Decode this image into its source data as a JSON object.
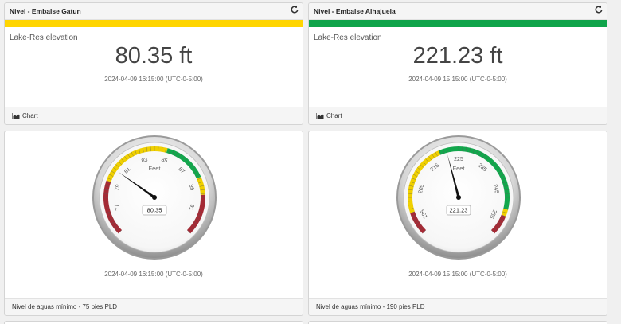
{
  "panels": [
    {
      "title": "Nivel - Embalse Gatun",
      "bar_color": "#ffd500",
      "tag": "Lake-Res elevation",
      "value": "80.35 ft",
      "timestamp": "2024-04-09 16:15:00 (UTC-0-5:00)",
      "chart_label": "Chart",
      "icons": {
        "refresh": "refresh-icon",
        "chart": "area-chart-icon"
      }
    },
    {
      "title": "Nivel - Embalse Alhajuela",
      "bar_color": "#0fa44a",
      "tag": "Lake-Res elevation",
      "value": "221.23 ft",
      "timestamp": "2024-04-09 15:15:00 (UTC-0-5:00)",
      "chart_label": "Chart",
      "icons": {
        "refresh": "refresh-icon",
        "chart": "area-chart-icon"
      }
    }
  ],
  "gauges": [
    {
      "unit": "Feet",
      "value": 80.35,
      "readout": "80.35",
      "min": 75,
      "max": 93,
      "ticks": [
        75,
        77,
        79,
        81,
        83,
        85,
        87,
        89,
        91,
        93
      ],
      "tick_labels": [
        "77",
        "79",
        "81",
        "83",
        "85",
        "87",
        "89",
        "91"
      ],
      "bands": [
        {
          "from": 75,
          "to": 79.3,
          "color": "#a52a35"
        },
        {
          "from": 79.3,
          "to": 85,
          "color": "#f0d000"
        },
        {
          "from": 85,
          "to": 88.4,
          "color": "#11a84c"
        },
        {
          "from": 88.4,
          "to": 89.8,
          "color": "#f0d000"
        },
        {
          "from": 89.8,
          "to": 93,
          "color": "#a52a35"
        }
      ],
      "timestamp": "2024-04-09 16:15:00 (UTC-0-5:00)",
      "footer": "Nivel de aguas mínimo - 75 pies PLD"
    },
    {
      "unit": "Feet",
      "value": 221.23,
      "readout": "221.23",
      "min": 190,
      "max": 260,
      "ticks": [
        195,
        205,
        215,
        225,
        235,
        245,
        255
      ],
      "tick_labels": [
        "195",
        "205",
        "215",
        "225",
        "235",
        "245",
        "255"
      ],
      "bands": [
        {
          "from": 190,
          "to": 197,
          "color": "#a52a35"
        },
        {
          "from": 197,
          "to": 219,
          "color": "#f0d000"
        },
        {
          "from": 219,
          "to": 252,
          "color": "#11a84c"
        },
        {
          "from": 252,
          "to": 254,
          "color": "#f0d000"
        },
        {
          "from": 254,
          "to": 260,
          "color": "#a52a35"
        }
      ],
      "timestamp": "2024-04-09 15:15:00 (UTC-0-5:00)",
      "footer": "Nivel de aguas mínimo - 190 pies PLD"
    }
  ]
}
